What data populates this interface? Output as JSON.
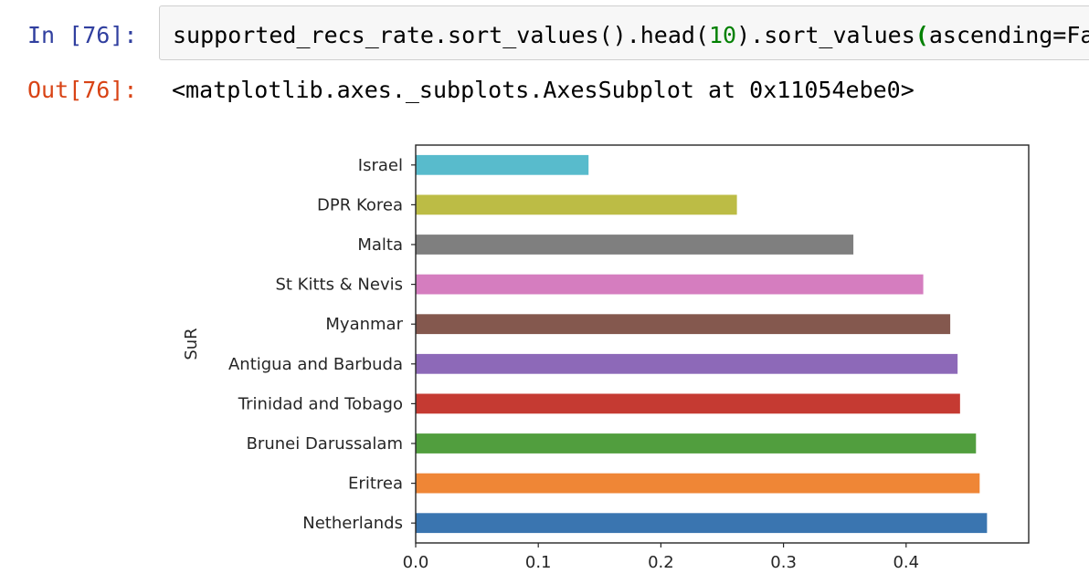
{
  "cell": {
    "in_prompt": "In [76]:",
    "out_prompt": "Out[76]:",
    "code_before_num": "supported_recs_rate.sort_values().head(",
    "code_num": "10",
    "code_mid": ").sort_values",
    "code_paren": "(",
    "code_after": "ascending=False).plot.barh()",
    "output_text": "<matplotlib.axes._subplots.AxesSubplot at 0x11054ebe0>"
  },
  "chart_data": {
    "type": "bar",
    "orientation": "horizontal",
    "categories": [
      "Netherlands",
      "Eritrea",
      "Brunei Darussalam",
      "Trinidad and Tobago",
      "Antigua and Barbuda",
      "Myanmar",
      "St Kitts & Nevis",
      "Malta",
      "DPR Korea",
      "Israel"
    ],
    "values": [
      0.466,
      0.46,
      0.457,
      0.444,
      0.442,
      0.436,
      0.414,
      0.357,
      0.262,
      0.141
    ],
    "colors": [
      "#3a75b0",
      "#ef8636",
      "#519e3e",
      "#c53a32",
      "#8d69b8",
      "#84584e",
      "#d57dbf",
      "#7f7f7f",
      "#bcbc45",
      "#58bbcc"
    ],
    "title": "",
    "xlabel": "",
    "ylabel": "SuR",
    "xlim": [
      0,
      0.5
    ],
    "xticks": [
      "0.0",
      "0.1",
      "0.2",
      "0.3",
      "0.4"
    ],
    "grid": false,
    "legend": "none"
  }
}
